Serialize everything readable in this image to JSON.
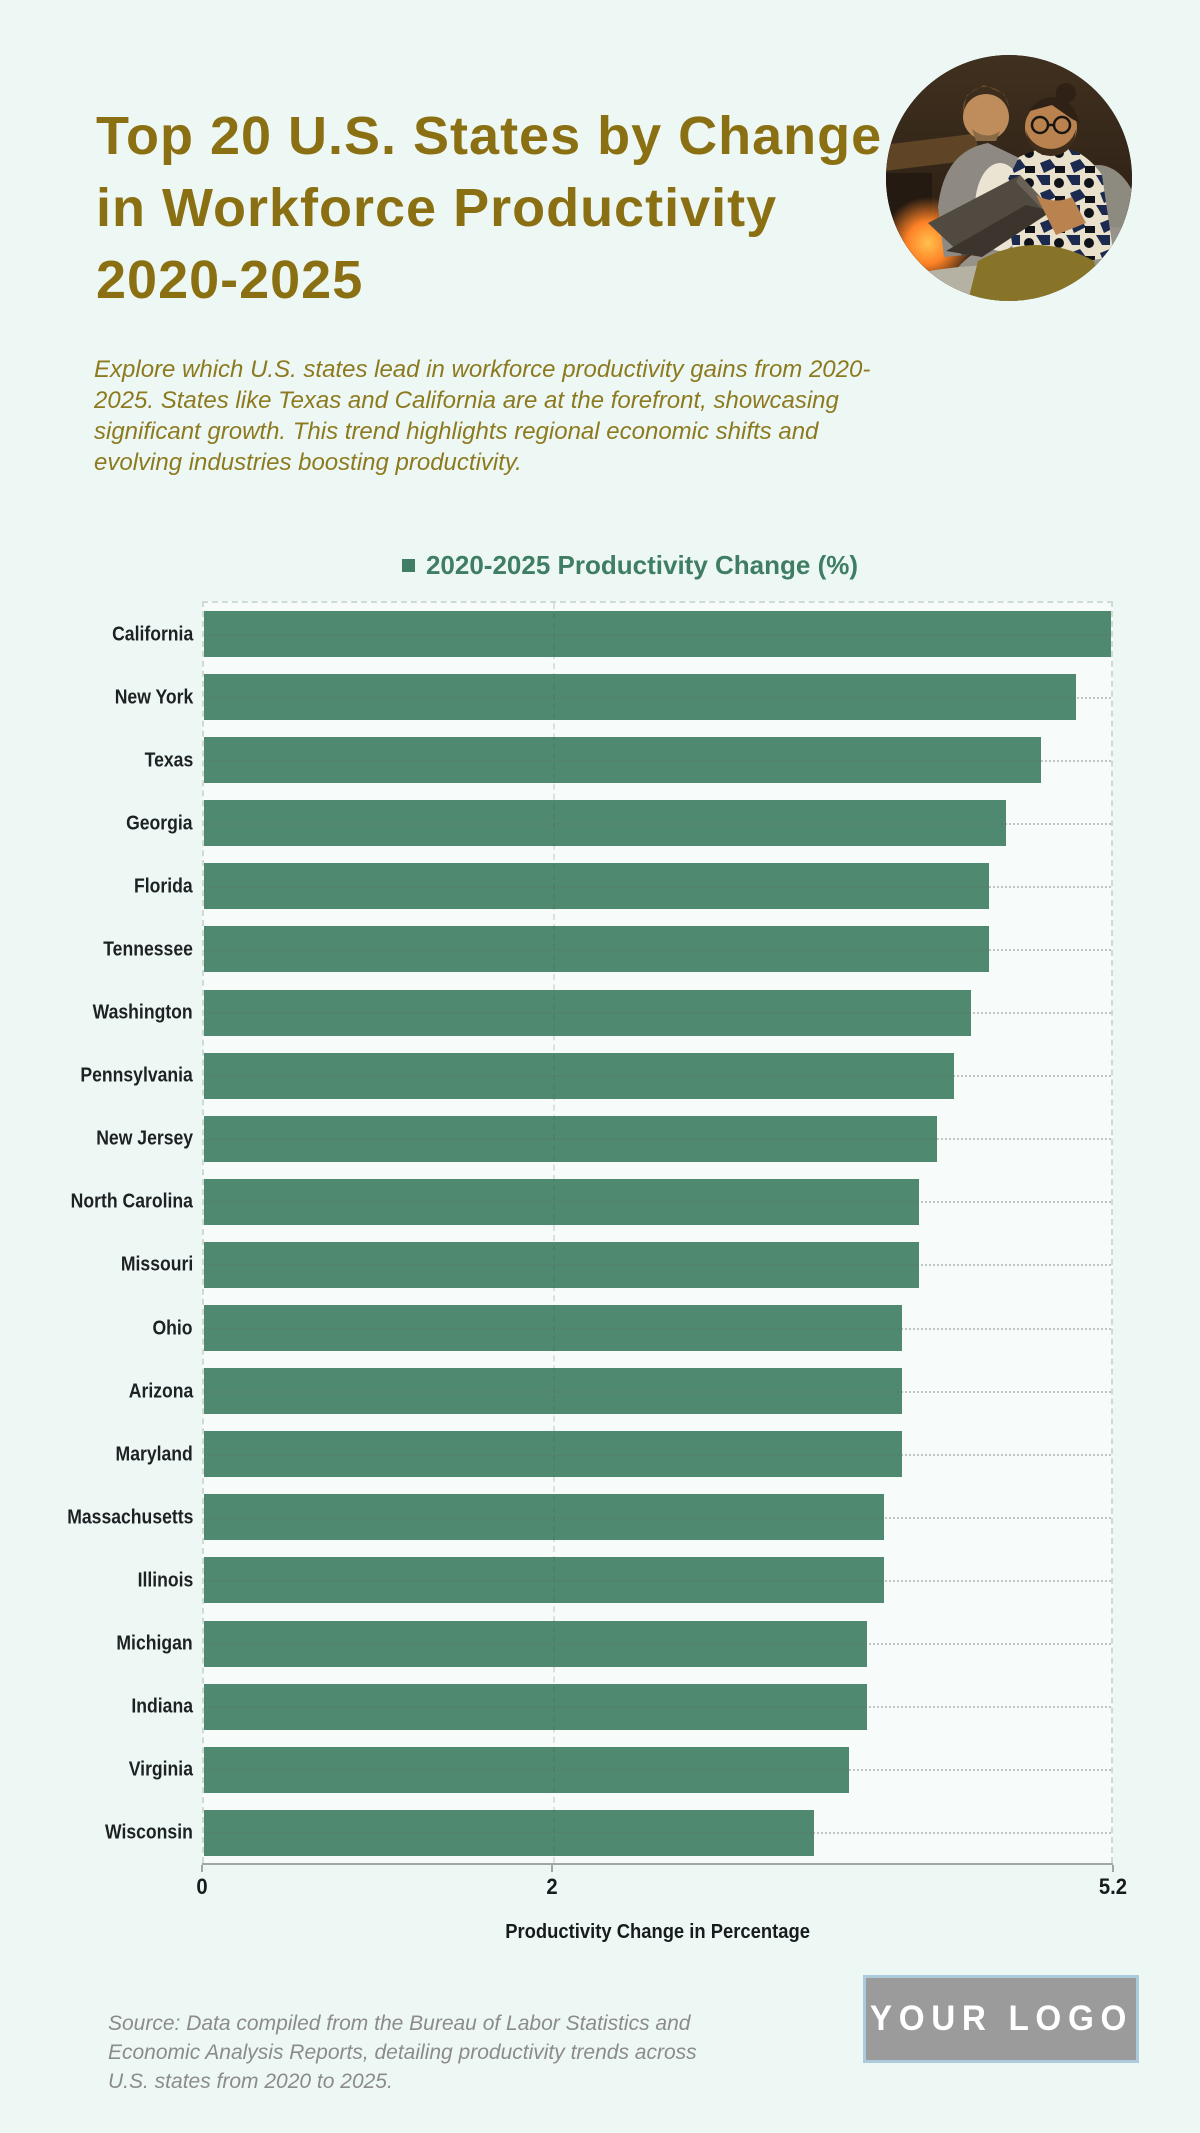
{
  "colors": {
    "background": "#edf8f4",
    "title_gold": "#8a7013",
    "subtitle_gold": "#8d7a20",
    "bar_green": "#4f8a70",
    "legend_green": "#3f7d64",
    "label_dark": "#1d2124",
    "source_gray": "#8b8b8b",
    "logo_gray": "#9b9b9b",
    "logo_border_blue": "#abcbdc"
  },
  "header": {
    "title": "Top 20 U.S. States by Change in Workforce Productivity 2020-2025",
    "subtitle": "Explore which U.S. states lead in workforce productivity gains from 2020-2025. States like Texas and California are at the forefront, showcasing significant growth. This trend highlights regional economic shifts and evolving industries boosting productivity."
  },
  "photo": {
    "description": "Two people reviewing a laptop together beside a fireplace"
  },
  "legend": {
    "label": "2020-2025 Productivity Change (%)"
  },
  "chart_data": {
    "type": "bar",
    "orientation": "horizontal",
    "title": "2020-2025 Productivity Change (%)",
    "categories": [
      "California",
      "New York",
      "Texas",
      "Georgia",
      "Florida",
      "Tennessee",
      "Washington",
      "Pennsylvania",
      "New Jersey",
      "North Carolina",
      "Missouri",
      "Ohio",
      "Arizona",
      "Maryland",
      "Massachusetts",
      "Illinois",
      "Michigan",
      "Indiana",
      "Virginia",
      "Wisconsin"
    ],
    "values": [
      5.2,
      5.0,
      4.8,
      4.6,
      4.5,
      4.5,
      4.4,
      4.3,
      4.2,
      4.1,
      4.1,
      4.0,
      4.0,
      4.0,
      3.9,
      3.9,
      3.8,
      3.8,
      3.7,
      3.5
    ],
    "xlabel": "Productivity Change in Percentage",
    "ylabel": "",
    "xlim": [
      0,
      5.2
    ],
    "x_ticks": [
      0,
      2,
      5.2
    ],
    "x_tick_labels": [
      "0",
      "2",
      "5.2"
    ],
    "bar_color": "#4f8a70",
    "grid": "dashed",
    "legend_position": "top-center"
  },
  "footer": {
    "source": "Source: Data compiled from the Bureau of Labor Statistics and Economic Analysis Reports, detailing productivity trends across U.S. states from 2020 to 2025.",
    "logo_text": "YOUR LOGO"
  }
}
